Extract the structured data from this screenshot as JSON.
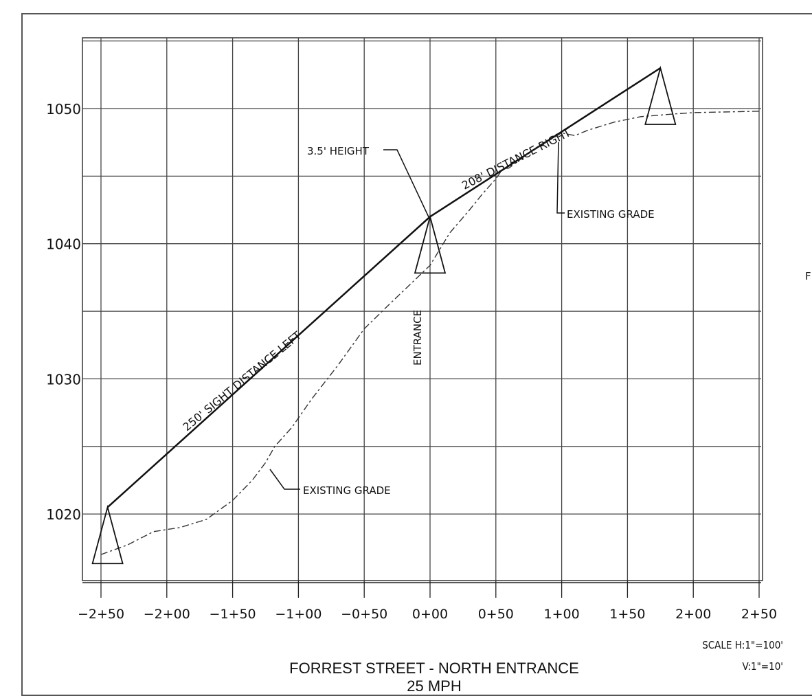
{
  "chart_data": {
    "type": "line",
    "title": "FORREST STREET - NORTH ENTRANCE",
    "subtitle": "25 MPH",
    "x_ticks": [
      "-2+50",
      "-2+00",
      "-1+50",
      "-1+00",
      "-0+50",
      "0+00",
      "0+50",
      "1+00",
      "1+50",
      "2+00",
      "2+50"
    ],
    "y_ticks": [
      "1020",
      "1030",
      "1040",
      "1050"
    ],
    "xlim": [
      -250,
      250
    ],
    "ylim": [
      1015,
      1055
    ],
    "grid": true,
    "series": [
      {
        "x": [
          -245,
          0,
          175
        ],
        "y": [
          1020.5,
          1042.0,
          1053.0
        ]
      },
      {
        "x": [
          -250,
          -230,
          -210,
          -190,
          -170,
          -150,
          -135,
          -125,
          -118,
          -105,
          -90,
          -70,
          -50,
          -30,
          -15,
          0,
          15,
          30,
          40,
          50,
          55,
          60,
          75,
          90,
          100,
          105,
          110,
          120,
          140,
          160,
          185,
          200,
          250
        ],
        "y": [
          1017.0,
          1017.7,
          1018.7,
          1019.0,
          1019.6,
          1021.0,
          1022.5,
          1023.8,
          1025.0,
          1026.4,
          1028.5,
          1031.0,
          1033.7,
          1035.6,
          1037.0,
          1038.4,
          1040.8,
          1042.5,
          1043.7,
          1044.8,
          1045.5,
          1045.6,
          1046.7,
          1047.6,
          1048.2,
          1048.1,
          1048.0,
          1048.4,
          1049.0,
          1049.4,
          1049.6,
          1049.7,
          1049.8
        ]
      }
    ],
    "annotations": {
      "sight_left": "250' SIGHT DISTANCE LEFT",
      "sight_right": "208' DISTANCE RIGHT",
      "height": "3.5' HEIGHT",
      "entrance": "ENTRANCE",
      "existing_grade_upper": "EXISTING GRADE",
      "existing_grade_lower": "EXISTING GRADE",
      "scale_h": "SCALE  H:1\"=100'",
      "scale_v": "V:1\"=10'",
      "edge_letter": "F"
    }
  }
}
